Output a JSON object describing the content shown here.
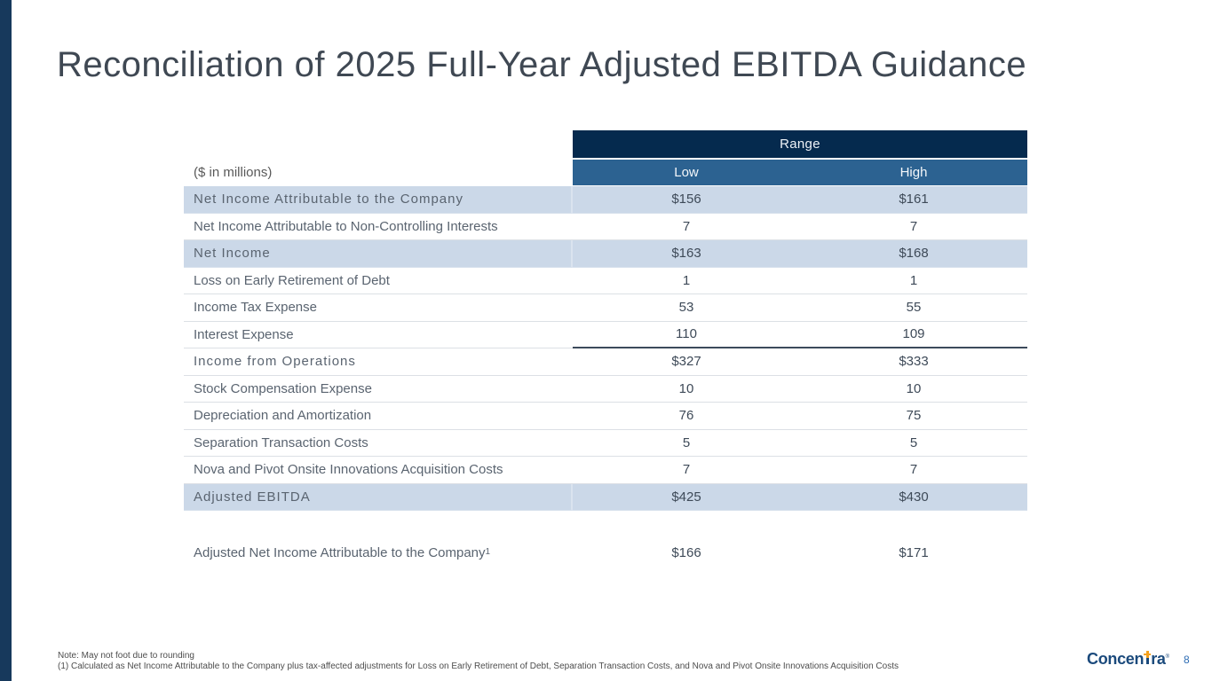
{
  "slide": {
    "title": "Reconciliation of 2025 Full-Year Adjusted EBITDA Guidance",
    "page_number": "8"
  },
  "table": {
    "units_label": "($ in millions)",
    "range_header": "Range",
    "columns": [
      "Low",
      "High"
    ],
    "rows": [
      {
        "label": "Net Income Attributable to the Company",
        "low": "$156",
        "high": "$161"
      },
      {
        "label": "Net Income Attributable to Non-Controlling Interests",
        "low": "7",
        "high": "7"
      },
      {
        "label": "Net Income",
        "low": "$163",
        "high": "$168"
      },
      {
        "label": "Loss on Early Retirement of Debt",
        "low": "1",
        "high": "1"
      },
      {
        "label": "Income Tax Expense",
        "low": "53",
        "high": "55"
      },
      {
        "label": "Interest Expense",
        "low": "110",
        "high": "109"
      },
      {
        "label": "Income from Operations",
        "low": "$327",
        "high": "$333"
      },
      {
        "label": "Stock Compensation Expense",
        "low": "10",
        "high": "10"
      },
      {
        "label": "Depreciation and Amortization",
        "low": "76",
        "high": "75"
      },
      {
        "label": "Separation Transaction Costs",
        "low": "5",
        "high": "5"
      },
      {
        "label": "Nova and Pivot Onsite Innovations Acquisition Costs",
        "low": "7",
        "high": "7"
      },
      {
        "label": "Adjusted EBITDA",
        "low": "$425",
        "high": "$430"
      }
    ],
    "adjusted_net_income_row": {
      "label": "Adjusted Net Income Attributable to the Company",
      "footnote_ref": "1",
      "low": "$166",
      "high": "$171"
    }
  },
  "footnotes": {
    "note": "Note: May not foot due to rounding",
    "footnote1": "(1) Calculated as Net Income Attributable to the Company plus tax-affected adjustments for Loss on Early Retirement of Debt, Separation Transaction Costs, and Nova and Pivot Onsite Innovations Acquisition Costs"
  },
  "logo": {
    "part_before_t": "Concen",
    "part_after_t": "ra",
    "registered_mark": "®"
  },
  "colors": {
    "accent_bar": "#17395C",
    "range_header_bg": "#052A4E",
    "column_header_bg": "#2C6291",
    "highlight_row_bg": "#CBD8E8",
    "logo_navy": "#1B4A7C",
    "logo_orange": "#F6A21D",
    "page_number_blue": "#2E6DB4"
  }
}
